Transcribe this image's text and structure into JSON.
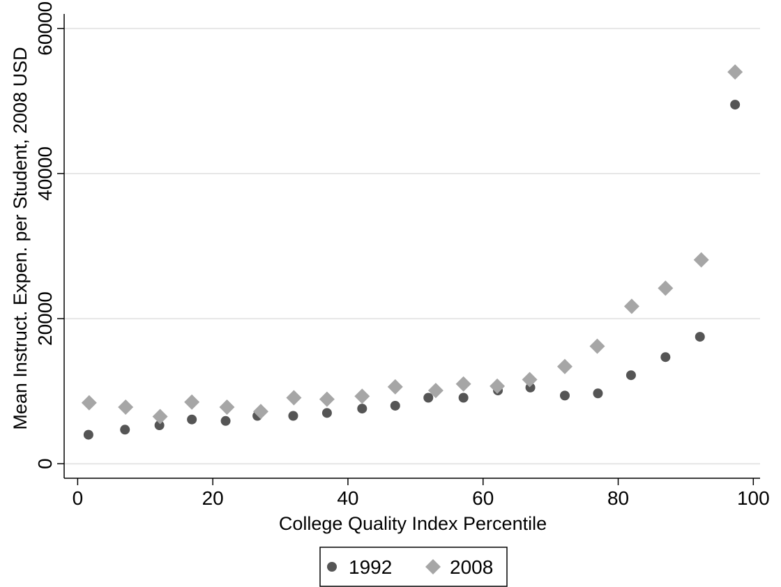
{
  "chart_data": {
    "type": "scatter",
    "title": "",
    "xlabel": "College Quality Index Percentile",
    "ylabel": "Mean Instruct. Expen. per Student, 2008 USD",
    "xlim": [
      -2,
      101
    ],
    "ylim": [
      -2000,
      62000
    ],
    "xticks": [
      0,
      20,
      40,
      60,
      80,
      100
    ],
    "yticks": [
      0,
      20000,
      40000,
      60000
    ],
    "xtick_labels": [
      "0",
      "20",
      "40",
      "60",
      "80",
      "100"
    ],
    "ytick_labels": [
      "0",
      "20000",
      "40000",
      "60000"
    ],
    "grid": "horizontal",
    "legend_position": "bottom",
    "series": [
      {
        "name": "1992",
        "marker": "circle",
        "color": "#555555",
        "points": [
          [
            1.6,
            4000
          ],
          [
            7.0,
            4700
          ],
          [
            12.1,
            5300
          ],
          [
            16.9,
            6100
          ],
          [
            21.9,
            5900
          ],
          [
            26.6,
            6600
          ],
          [
            31.9,
            6600
          ],
          [
            36.9,
            7000
          ],
          [
            42.1,
            7600
          ],
          [
            47.0,
            8000
          ],
          [
            51.9,
            9100
          ],
          [
            57.1,
            9100
          ],
          [
            62.2,
            10100
          ],
          [
            67.0,
            10500
          ],
          [
            72.1,
            9400
          ],
          [
            77.0,
            9700
          ],
          [
            81.9,
            12200
          ],
          [
            87.0,
            14700
          ],
          [
            92.1,
            17500
          ],
          [
            97.3,
            49500
          ]
        ]
      },
      {
        "name": "2008",
        "marker": "diamond",
        "color": "#a6a6a6",
        "points": [
          [
            1.7,
            8400
          ],
          [
            7.1,
            7800
          ],
          [
            12.2,
            6500
          ],
          [
            16.9,
            8500
          ],
          [
            22.1,
            7800
          ],
          [
            27.1,
            7200
          ],
          [
            32.0,
            9100
          ],
          [
            36.9,
            8900
          ],
          [
            42.1,
            9300
          ],
          [
            47.0,
            10600
          ],
          [
            53.0,
            10100
          ],
          [
            57.1,
            11000
          ],
          [
            62.1,
            10700
          ],
          [
            66.9,
            11600
          ],
          [
            72.1,
            13400
          ],
          [
            76.9,
            16200
          ],
          [
            82.0,
            21700
          ],
          [
            87.0,
            24200
          ],
          [
            92.3,
            28100
          ],
          [
            97.3,
            54000
          ]
        ]
      }
    ]
  }
}
